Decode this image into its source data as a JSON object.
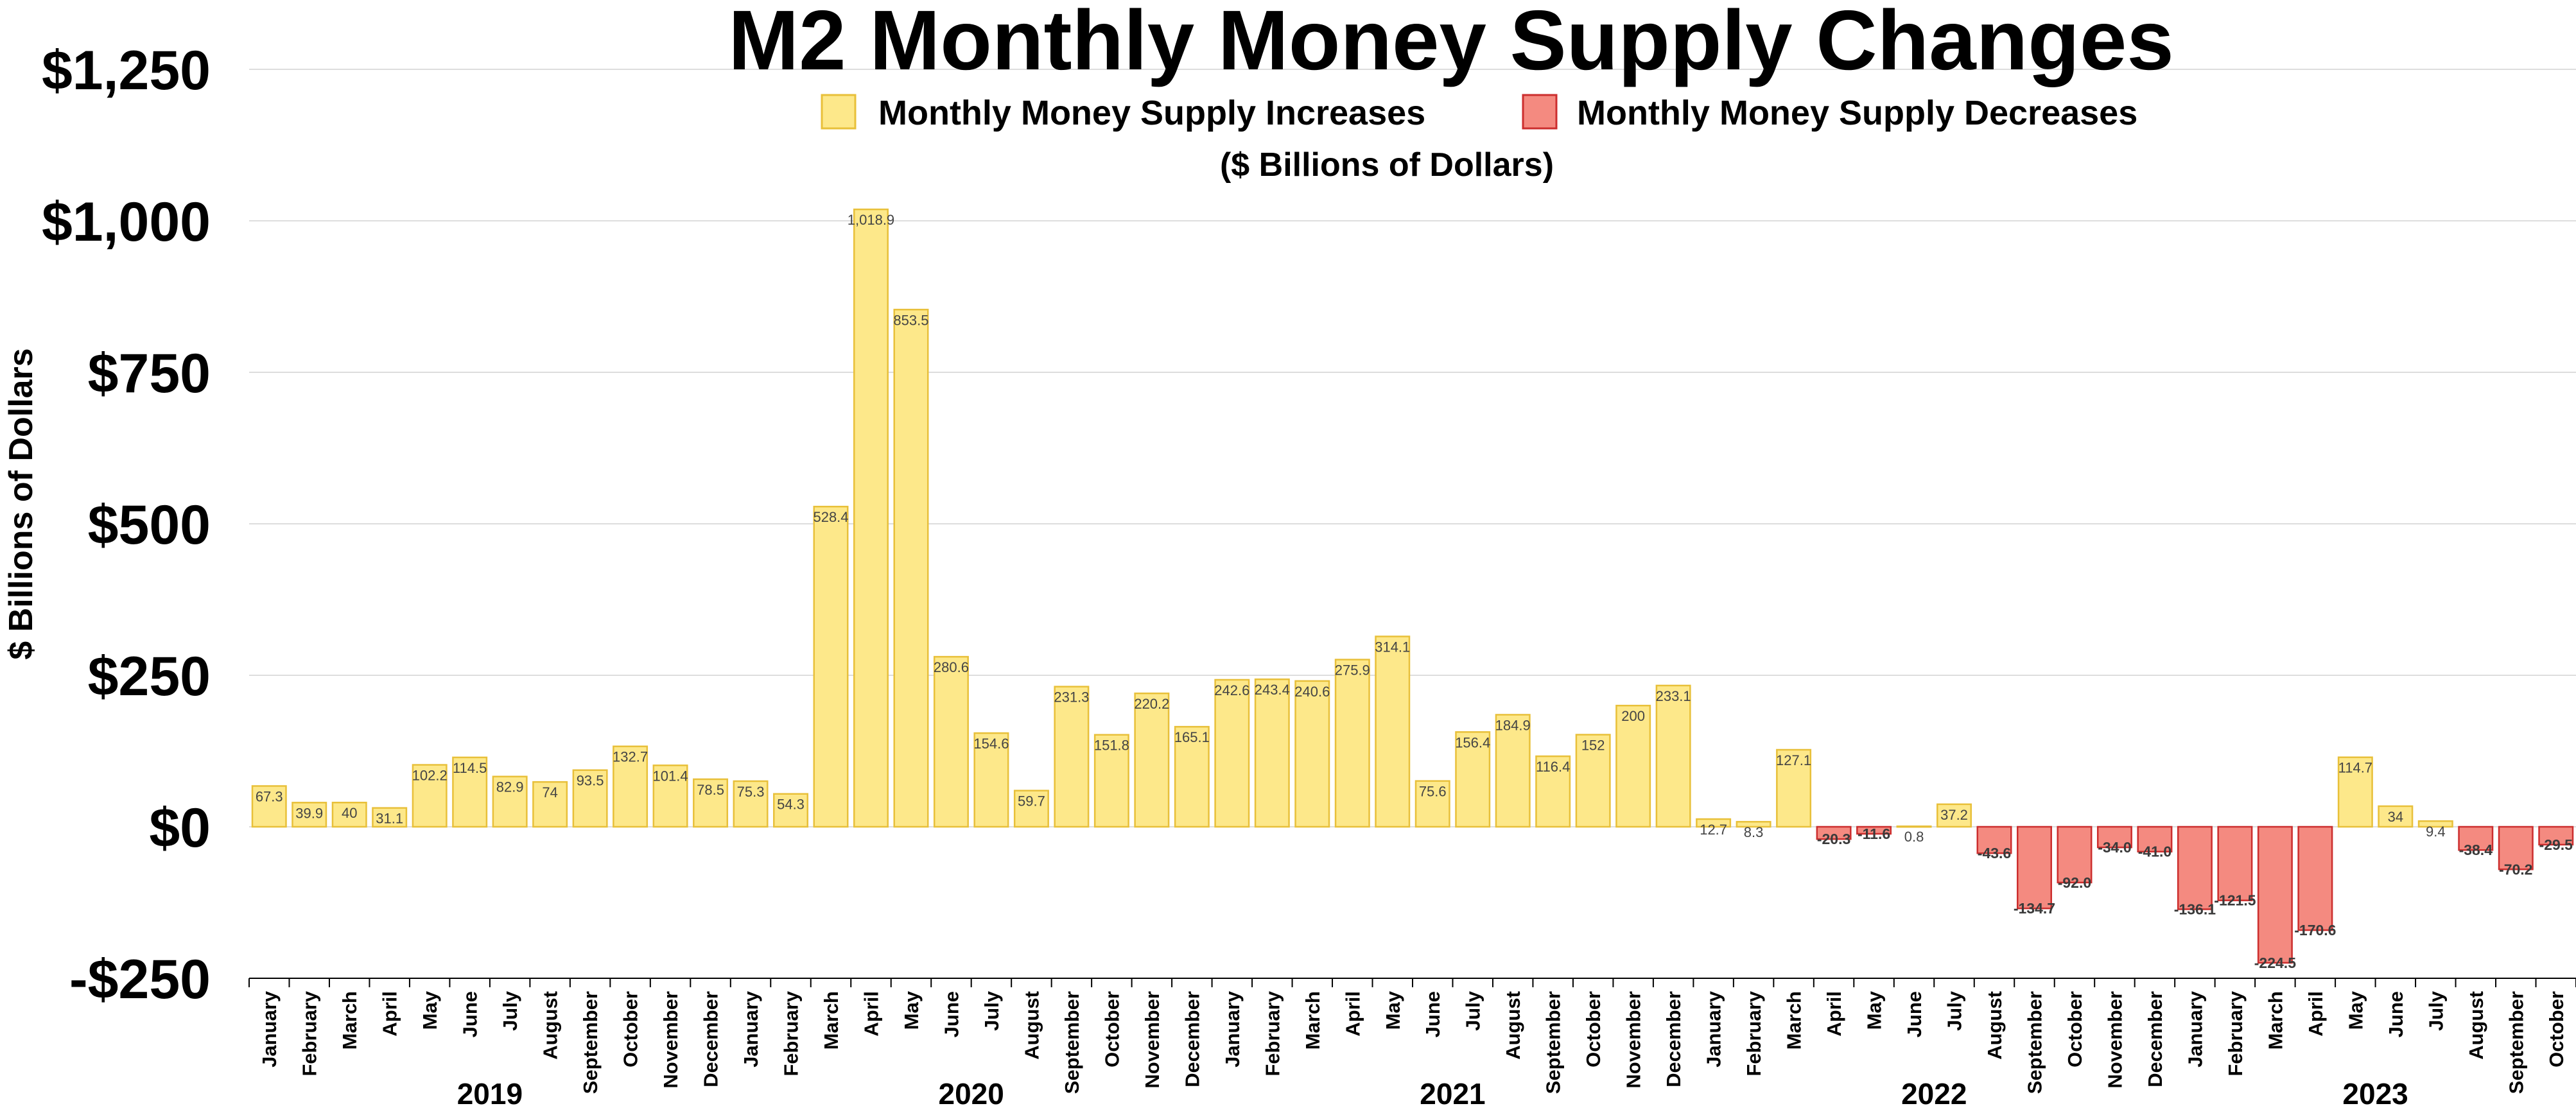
{
  "chart_data": {
    "type": "bar",
    "title": "M2 Monthly Money Supply Changes",
    "subtitle": "($ Billions of Dollars)",
    "ylabel": "$ Billions of Dollars",
    "xlabel": "",
    "ylim": [
      -250,
      1250
    ],
    "y_ticks": [
      {
        "value": 1250,
        "label": "$1,250"
      },
      {
        "value": 1000,
        "label": "$1,000"
      },
      {
        "value": 750,
        "label": "$750"
      },
      {
        "value": 500,
        "label": "$500"
      },
      {
        "value": 250,
        "label": "$250"
      },
      {
        "value": 0,
        "label": "$0"
      },
      {
        "value": -250,
        "label": "-$250"
      }
    ],
    "grid": true,
    "legend_position": "top-center",
    "series": [
      {
        "name": "Monthly Money Supply Increases",
        "color": "#fde88a",
        "border": "#e8c03a"
      },
      {
        "name": "Monthly Money Supply Decreases",
        "color": "#f48a80",
        "border": "#cc2e2e"
      }
    ],
    "categories": [
      "January",
      "February",
      "March",
      "April",
      "May",
      "June",
      "July",
      "August",
      "September",
      "October",
      "November",
      "December",
      "January",
      "February",
      "March",
      "April",
      "May",
      "June",
      "July",
      "August",
      "September",
      "October",
      "November",
      "December",
      "January",
      "February",
      "March",
      "April",
      "May",
      "June",
      "July",
      "August",
      "September",
      "October",
      "November",
      "December",
      "January",
      "February",
      "March",
      "April",
      "May",
      "June",
      "July",
      "August",
      "September",
      "October",
      "November",
      "December",
      "January",
      "February",
      "March",
      "April",
      "May",
      "June",
      "July",
      "August",
      "September",
      "October"
    ],
    "values": [
      67.3,
      39.9,
      40,
      31.1,
      102.2,
      114.5,
      82.9,
      74,
      93.5,
      132.7,
      101.4,
      78.5,
      75.3,
      54.3,
      528.4,
      1018.9,
      853.5,
      280.6,
      154.6,
      59.7,
      231.3,
      151.8,
      220.2,
      165.1,
      242.6,
      243.4,
      240.6,
      275.9,
      314.1,
      75.6,
      156.4,
      184.9,
      116.4,
      152,
      200,
      233.1,
      12.7,
      8.3,
      127.1,
      -20.3,
      -11.6,
      0.8,
      37.2,
      -43.6,
      -134.7,
      -92.0,
      -34.0,
      -41.0,
      -136.1,
      -121.5,
      -224.5,
      -170.6,
      114.7,
      34,
      9.4,
      -38.4,
      -70.2,
      -29.5
    ],
    "value_labels": [
      "67.3",
      "39.9",
      "40",
      "31.1",
      "102.2",
      "114.5",
      "82.9",
      "74",
      "93.5",
      "132.7",
      "101.4",
      "78.5",
      "75.3",
      "54.3",
      "528.4",
      "1,018.9",
      "853.5",
      "280.6",
      "154.6",
      "59.7",
      "231.3",
      "151.8",
      "220.2",
      "165.1",
      "242.6",
      "243.4",
      "240.6",
      "275.9",
      "314.1",
      "75.6",
      "156.4",
      "184.9",
      "116.4",
      "152",
      "200",
      "233.1",
      "12.7",
      "8.3",
      "127.1",
      "-20.3",
      "-11.6",
      "0.8",
      "37.2",
      "-43.6",
      "-134.7",
      "-92.0",
      "-34.0",
      "-41.0",
      "-136.1",
      "-121.5",
      "-224.5",
      "-170.6",
      "114.7",
      "34",
      "9.4",
      "-38.4",
      "-70.2",
      "-29.5"
    ],
    "year_groups": [
      {
        "label": "2019",
        "start": 0,
        "end": 11
      },
      {
        "label": "2020",
        "start": 12,
        "end": 23
      },
      {
        "label": "2021",
        "start": 24,
        "end": 35
      },
      {
        "label": "2022",
        "start": 36,
        "end": 47
      },
      {
        "label": "2023",
        "start": 48,
        "end": 57
      }
    ]
  }
}
